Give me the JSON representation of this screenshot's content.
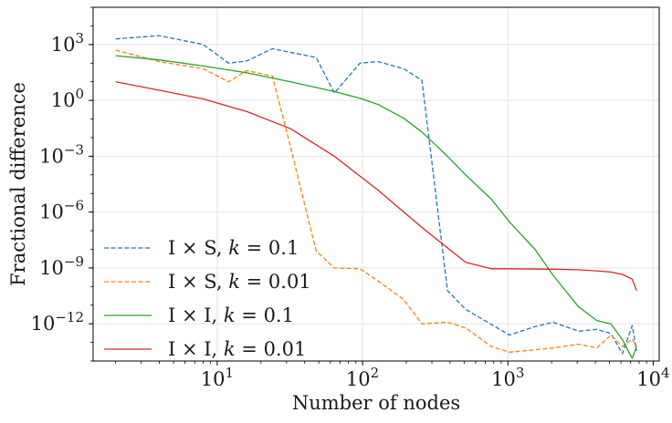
{
  "chart_data": {
    "type": "line",
    "title": "",
    "xlabel": "Number of nodes",
    "ylabel": "Fractional difference",
    "xscale": "log",
    "yscale": "log",
    "xlim": [
      1.4,
      11000
    ],
    "ylim": [
      1e-14,
      100000.0
    ],
    "grid": true,
    "legend_position": "lower-left",
    "x_ticks": [
      {
        "value": 10,
        "base": "10",
        "exp": "1"
      },
      {
        "value": 100,
        "base": "10",
        "exp": "2"
      },
      {
        "value": 1000,
        "base": "10",
        "exp": "3"
      },
      {
        "value": 10000,
        "base": "10",
        "exp": "4"
      }
    ],
    "y_ticks": [
      {
        "value": 1000,
        "base": "10",
        "exp": "3"
      },
      {
        "value": 1,
        "base": "10",
        "exp": "0"
      },
      {
        "value": 0.001,
        "base": "10",
        "exp": "−3"
      },
      {
        "value": 1e-06,
        "base": "10",
        "exp": "−6"
      },
      {
        "value": 1e-09,
        "base": "10",
        "exp": "−9"
      },
      {
        "value": 1e-12,
        "base": "10",
        "exp": "−12"
      }
    ],
    "series": [
      {
        "name": "I × S, k = 0.1",
        "label_prefix": "I × S,",
        "k_value": "0.1",
        "color": "#1f77b4",
        "style": "dashed",
        "x": [
          2,
          4,
          8,
          12,
          16,
          24,
          48,
          64,
          96,
          128,
          192,
          256,
          384,
          512,
          1024,
          1536,
          2048,
          3072,
          4096,
          5120,
          6144,
          7168,
          7680
        ],
        "y": [
          2000,
          3000,
          1000,
          100,
          130,
          600,
          200,
          2.5,
          100,
          120,
          50,
          12,
          6e-11,
          6e-12,
          2.5e-13,
          7e-13,
          1.2e-12,
          4e-13,
          5e-13,
          3e-13,
          2.5e-14,
          8e-13,
          3.5e-14
        ]
      },
      {
        "name": "I × S, k = 0.01",
        "label_prefix": "I × S,",
        "k_value": "0.01",
        "color": "#ff7f0e",
        "style": "dashed",
        "x": [
          2,
          4,
          8,
          12,
          16,
          24,
          32,
          48,
          64,
          96,
          128,
          192,
          256,
          384,
          512,
          768,
          1024,
          1536,
          2048,
          3072,
          4096,
          5120,
          6144,
          7168,
          7680
        ],
        "y": [
          500,
          120,
          50,
          10,
          40,
          20,
          0.003,
          8e-09,
          1e-09,
          9e-10,
          2e-10,
          2e-11,
          1e-12,
          1.2e-12,
          6e-13,
          6e-14,
          3e-14,
          4e-14,
          5e-14,
          8e-14,
          5e-14,
          2.5e-13,
          6e-14,
          1.5e-13,
          6e-14
        ]
      },
      {
        "name": "I × I, k = 0.1",
        "label_prefix": "I × I,",
        "k_value": "0.1",
        "color": "#2ca02c",
        "style": "solid",
        "x": [
          2,
          4,
          8,
          16,
          32,
          64,
          96,
          128,
          192,
          256,
          384,
          512,
          768,
          1024,
          1536,
          2048,
          3072,
          4096,
          5120,
          6144,
          7168,
          7680
        ],
        "y": [
          250,
          150,
          70,
          30,
          10,
          3,
          1.3,
          0.6,
          0.11,
          0.02,
          0.001,
          0.0001,
          5e-06,
          3e-07,
          1e-08,
          4e-10,
          8e-12,
          1.5e-12,
          1e-12,
          1.4e-13,
          1.4e-14,
          6e-14
        ]
      },
      {
        "name": "I × I, k = 0.01",
        "label_prefix": "I × I,",
        "k_value": "0.01",
        "color": "#d62728",
        "style": "solid",
        "x": [
          2,
          4,
          8,
          16,
          32,
          64,
          128,
          256,
          512,
          768,
          1024,
          2048,
          3072,
          4096,
          5120,
          6144,
          7168,
          7680
        ],
        "y": [
          10,
          3.5,
          1.2,
          0.25,
          0.03,
          0.001,
          1.5e-05,
          1.5e-07,
          2e-09,
          9e-10,
          9e-10,
          8.5e-10,
          8e-10,
          7e-10,
          6e-10,
          4.5e-10,
          2.5e-10,
          6e-11
        ]
      }
    ]
  }
}
